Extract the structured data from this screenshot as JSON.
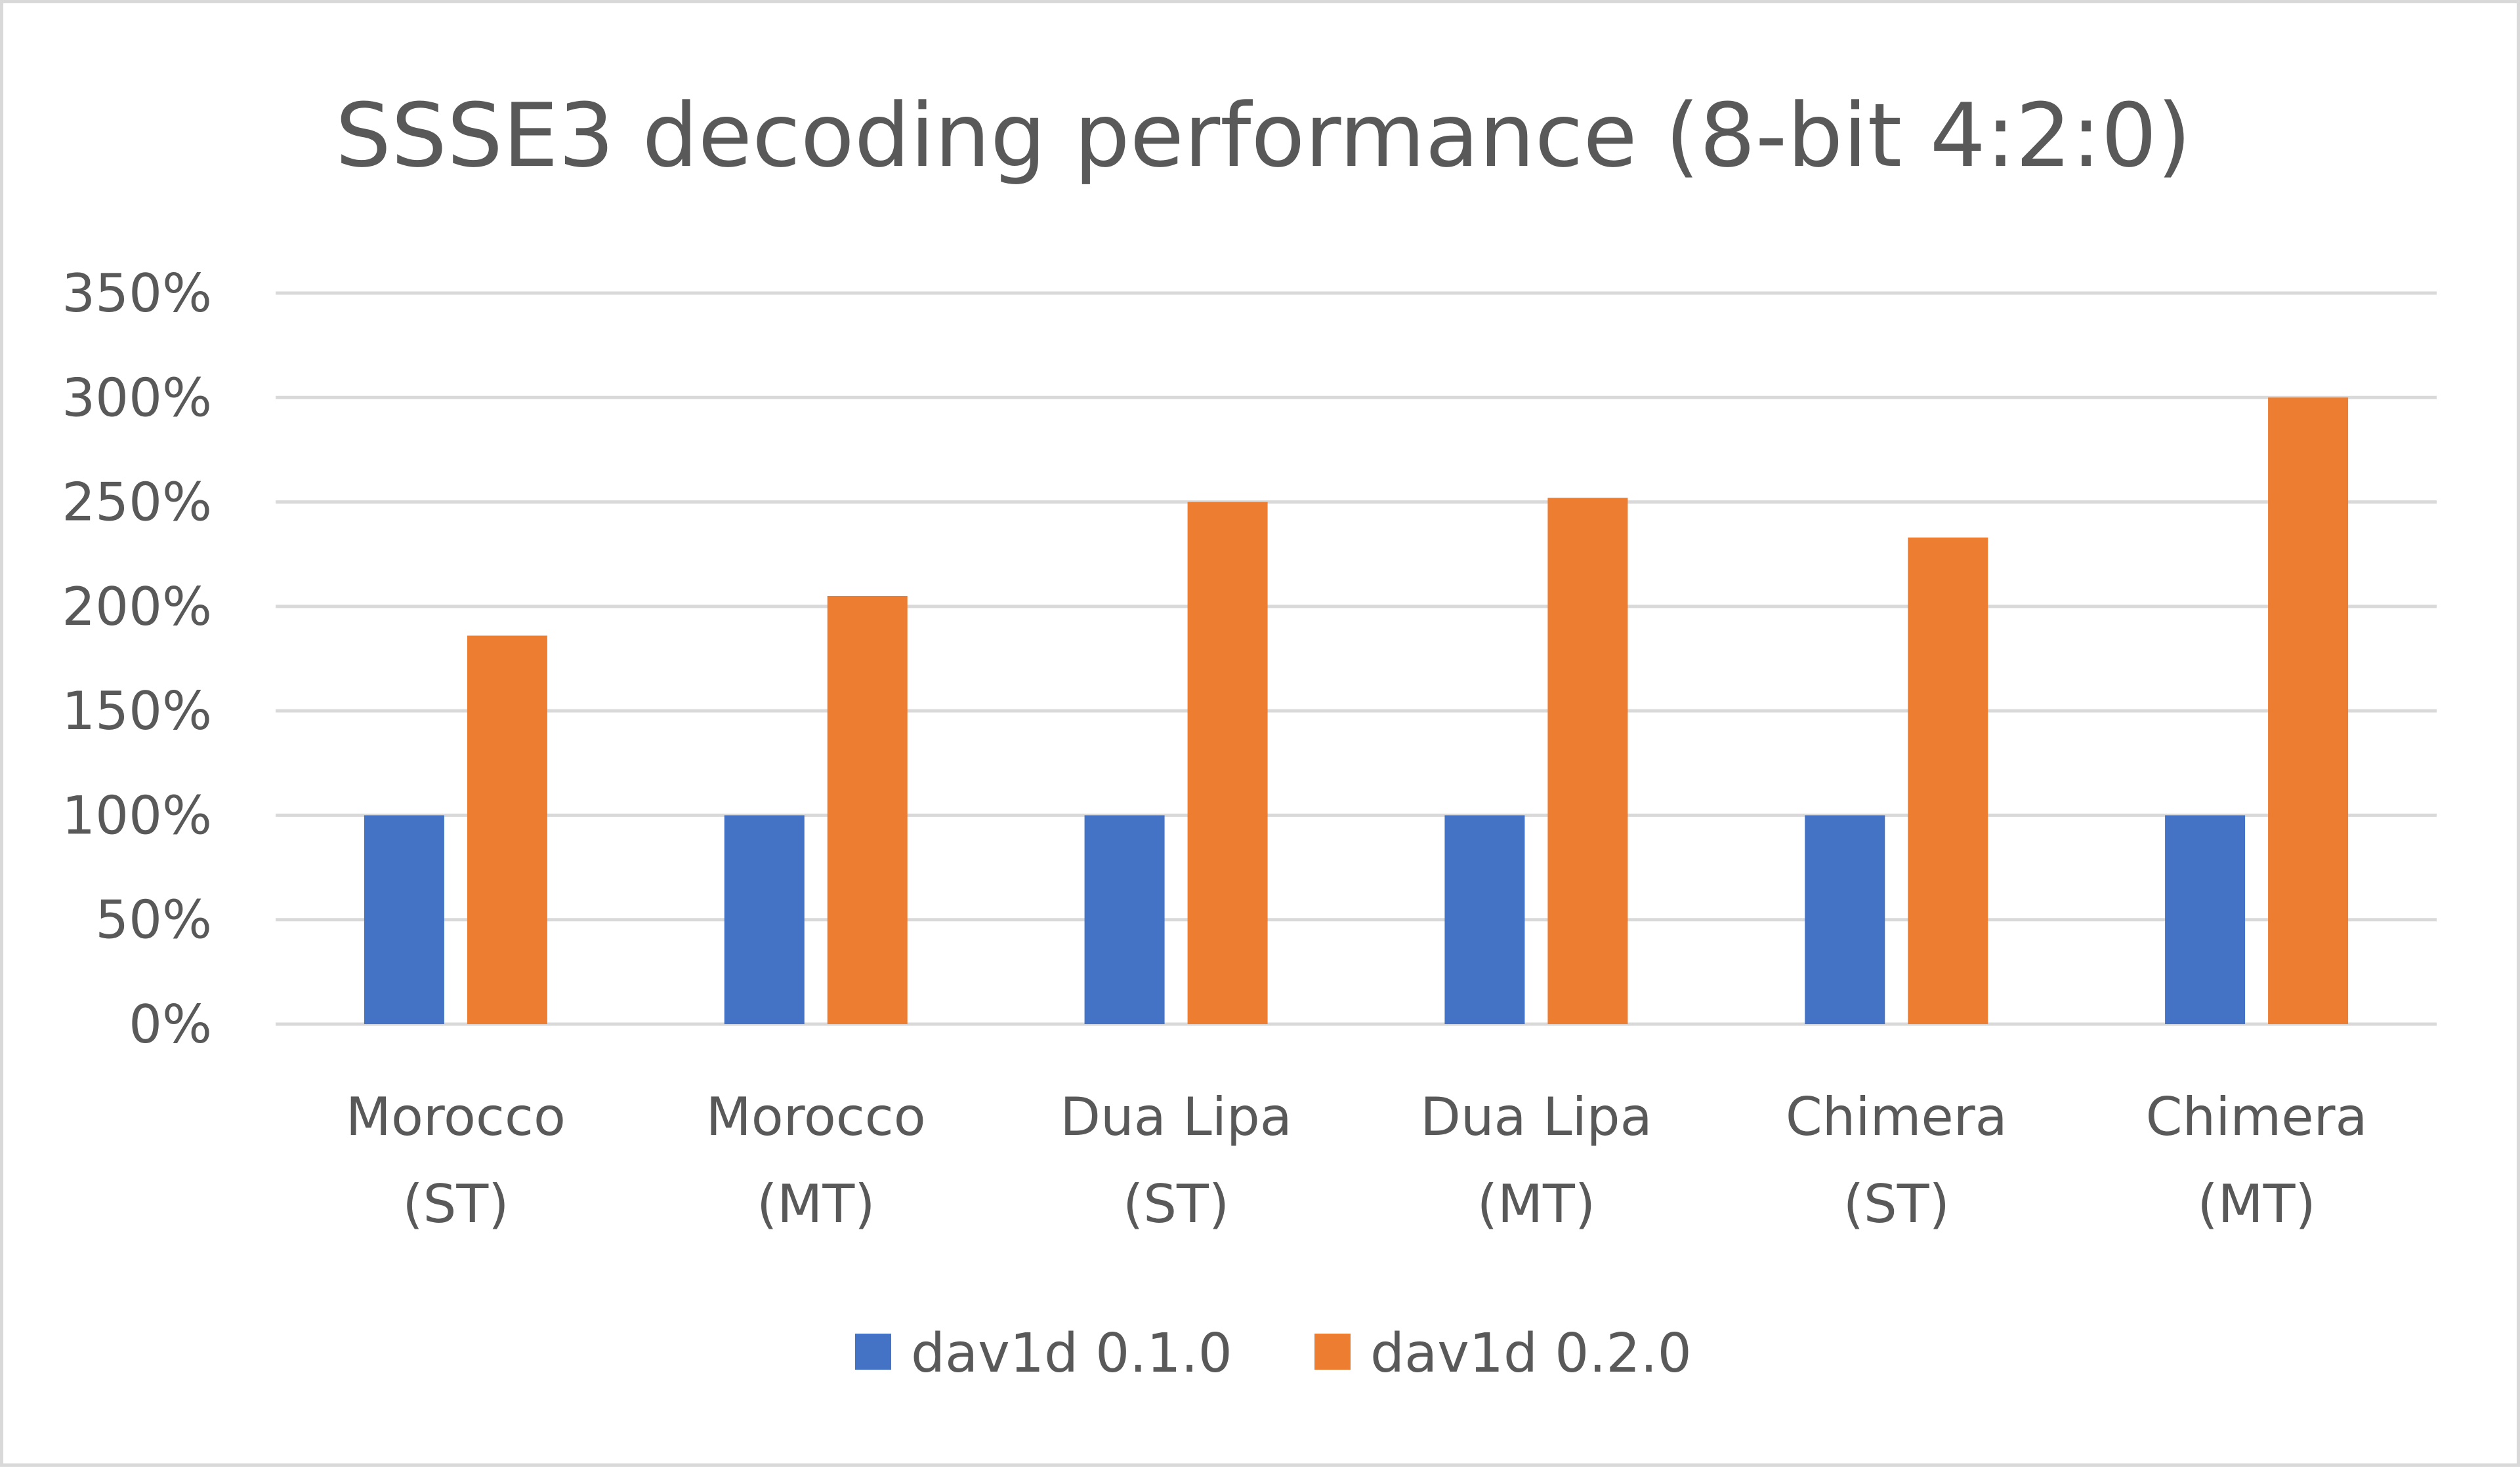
{
  "chart_data": {
    "type": "bar",
    "title": "SSSE3 decoding performance (8-bit 4:2:0)",
    "categories": [
      [
        "Morocco",
        "(ST)"
      ],
      [
        "Morocco",
        "(MT)"
      ],
      [
        "Dua Lipa",
        "(ST)"
      ],
      [
        "Dua Lipa",
        "(MT)"
      ],
      [
        "Chimera",
        "(ST)"
      ],
      [
        "Chimera",
        "(MT)"
      ]
    ],
    "series": [
      {
        "name": "dav1d 0.1.0",
        "color": "#4472c4",
        "values": [
          100,
          100,
          100,
          100,
          100,
          100
        ]
      },
      {
        "name": "dav1d 0.2.0",
        "color": "#ed7d31",
        "values": [
          186,
          205,
          250,
          252,
          233,
          300
        ]
      }
    ],
    "ylim": [
      0,
      350
    ],
    "yticks": [
      0,
      50,
      100,
      150,
      200,
      250,
      300,
      350
    ],
    "ytick_labels": [
      "0%",
      "50%",
      "100%",
      "150%",
      "200%",
      "250%",
      "300%",
      "350%"
    ],
    "xlabel": "",
    "ylabel": "",
    "grid": true,
    "legend_position": "bottom"
  }
}
